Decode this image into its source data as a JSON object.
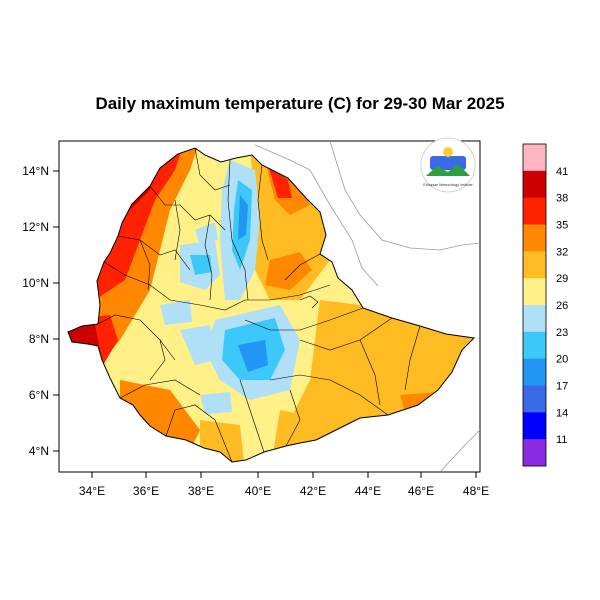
{
  "title": "Daily maximum temperature (C) for 29-30 Mar 2025",
  "axes": {
    "x_ticks": [
      "34°E",
      "36°E",
      "38°E",
      "40°E",
      "42°E",
      "44°E",
      "46°E",
      "48°E"
    ],
    "y_ticks": [
      "14°N",
      "12°N",
      "10°N",
      "8°N",
      "6°N",
      "4°N"
    ]
  },
  "colorbar": {
    "labels": [
      "41",
      "38",
      "35",
      "32",
      "29",
      "26",
      "23",
      "20",
      "17",
      "14",
      "11"
    ],
    "colors": [
      "#ffb6c1",
      "#cc0000",
      "#ff2200",
      "#ff8800",
      "#ffbb22",
      "#fff088",
      "#b0e0f8",
      "#3cc8f8",
      "#2196f3",
      "#3a6ae8",
      "#0000ff",
      "#8a2be2"
    ]
  },
  "logo": {
    "text": "Ethiopian Meteorology Institute"
  }
}
